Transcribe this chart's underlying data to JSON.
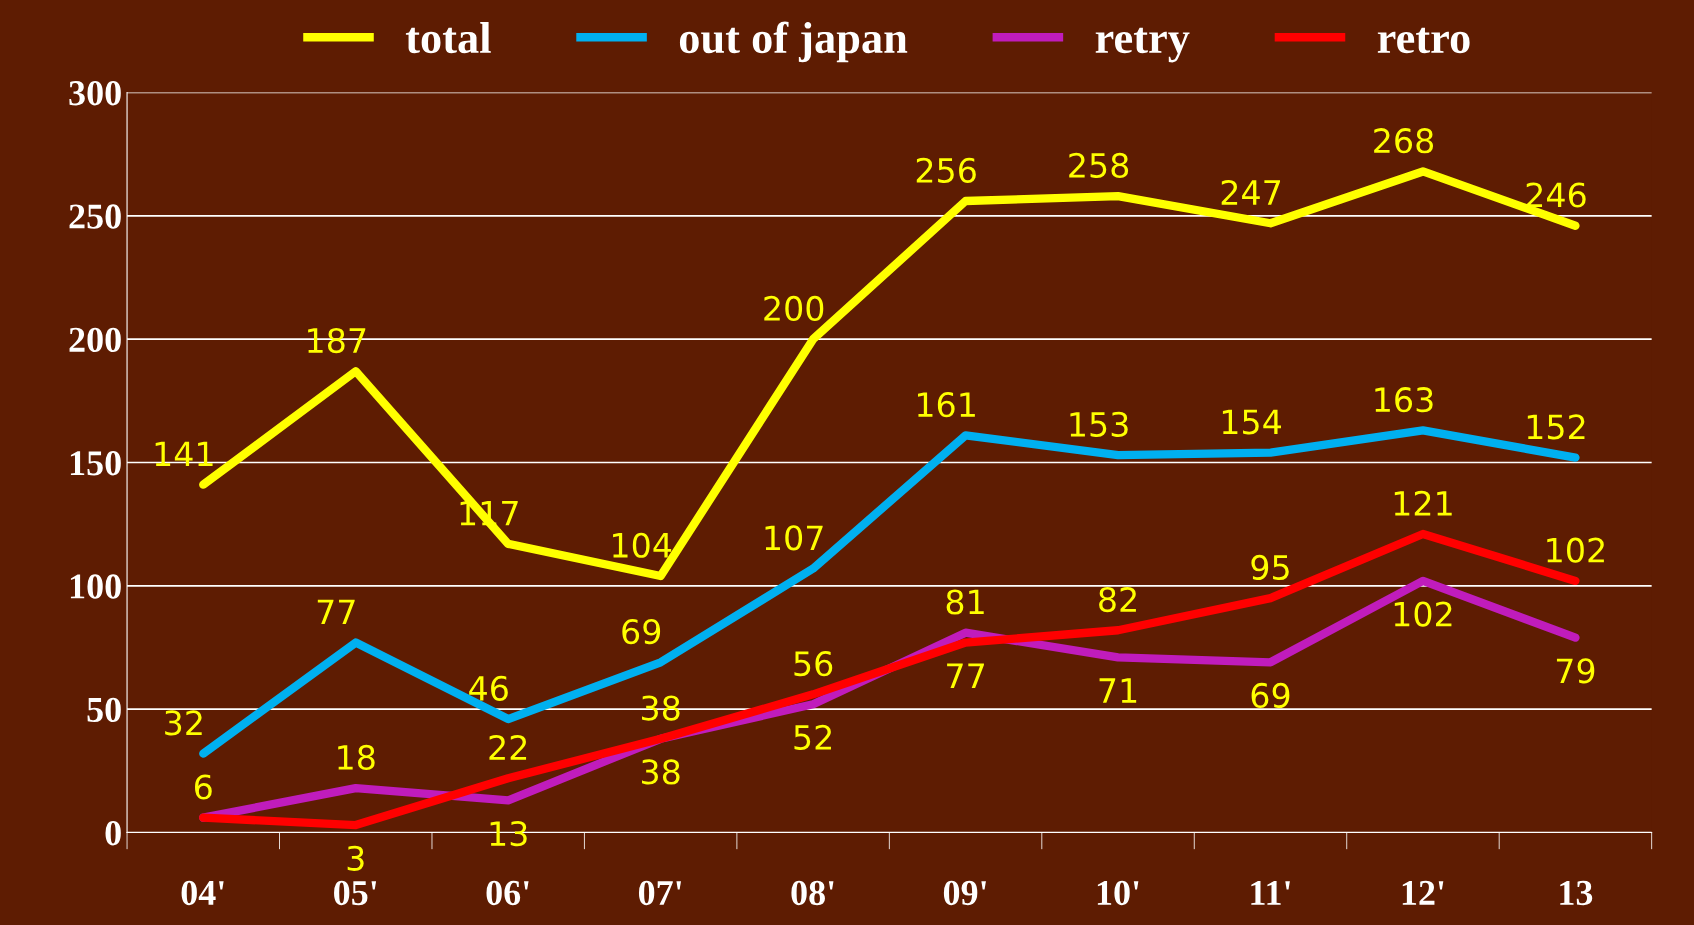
{
  "chart_data": {
    "type": "line",
    "categories": [
      "04'",
      "05'",
      "06'",
      "07'",
      "08'",
      "09'",
      "10'",
      "11'",
      "12'",
      "13"
    ],
    "series": [
      {
        "name": "total",
        "color": "#ffff00",
        "values": [
          141,
          187,
          117,
          104,
          200,
          256,
          258,
          247,
          268,
          246
        ],
        "value_labels": [
          "141",
          "187",
          "117",
          "104",
          "200",
          "256",
          "258",
          "247",
          "268",
          "246"
        ]
      },
      {
        "name": "out of japan",
        "color": "#00b0f0",
        "values": [
          32,
          77,
          46,
          69,
          107,
          161,
          153,
          154,
          163,
          152
        ],
        "value_labels": [
          "32",
          "77",
          "46",
          "69",
          "107",
          "161",
          "153",
          "154",
          "163",
          "152"
        ]
      },
      {
        "name": "retry",
        "color": "#c01cbc",
        "values": [
          6,
          18,
          13,
          38,
          52,
          81,
          71,
          69,
          102,
          79
        ],
        "value_labels": [
          "6",
          "18",
          "13",
          "38",
          "52",
          "81",
          "71",
          "69",
          "102",
          "79"
        ]
      },
      {
        "name": "retro",
        "color": "#ff0000",
        "values": [
          6,
          3,
          22,
          38,
          56,
          77,
          82,
          95,
          121,
          102
        ],
        "value_labels": [
          null,
          "3",
          "22",
          "38",
          "56",
          "77",
          "82",
          "95",
          "121",
          "102"
        ]
      }
    ],
    "ylim": [
      0,
      300
    ],
    "yticks": [
      0,
      50,
      100,
      150,
      200,
      250,
      300
    ],
    "grid": "y",
    "legend": "top",
    "marker": "none",
    "line_style": "solid"
  }
}
